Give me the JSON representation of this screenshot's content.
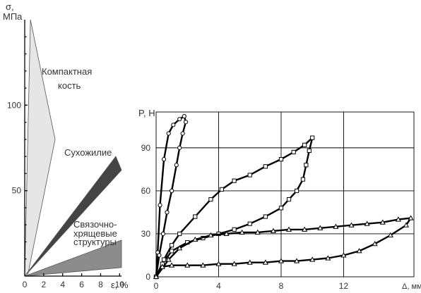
{
  "chart_data": [
    {
      "type": "area",
      "ylabel": "σ, МПа",
      "xlabel": "ε, %",
      "x_ticks": [
        "0",
        "2",
        "4",
        "6",
        "8",
        "10"
      ],
      "y_ticks": [
        "50",
        "100"
      ],
      "xlim": [
        0,
        10.2
      ],
      "ylim": [
        0,
        150
      ],
      "grid": false,
      "series": [
        {
          "name": "Компактная кость",
          "color": "#e6e6e6",
          "polygon": [
            [
              0,
              0
            ],
            [
              0.6,
              150
            ],
            [
              3.2,
              80
            ],
            [
              0.3,
              0
            ]
          ]
        },
        {
          "name": "Сухожилие",
          "color": "#444444",
          "polygon": [
            [
              0,
              0
            ],
            [
              9.6,
              70
            ],
            [
              10.2,
              62
            ],
            [
              0,
              0
            ]
          ]
        },
        {
          "name": "Связочно-хрящевые структуры",
          "color": "#8c8c8c",
          "polygon": [
            [
              0,
              0
            ],
            [
              10.2,
              21
            ],
            [
              10.2,
              5
            ],
            [
              0,
              0
            ]
          ]
        }
      ],
      "labels": {
        "bone_1": "Компактная",
        "bone_2": "кость",
        "tendon": "Сухожилие",
        "ligament_1": "Связочно-",
        "ligament_2": "хрящевые",
        "ligament_3": "структуры"
      }
    },
    {
      "type": "line",
      "ylabel": "P, Н",
      "xlabel": "Δ, мм",
      "x_ticks": [
        "0",
        "4",
        "8",
        "12"
      ],
      "y_ticks": [
        "0",
        "30",
        "60",
        "90"
      ],
      "xlim": [
        0,
        16.5
      ],
      "ylim": [
        0,
        115
      ],
      "grid": true,
      "series": [
        {
          "marker": "circle",
          "x": [
            0,
            0.1,
            0.25,
            0.5,
            0.8,
            1.1,
            1.5,
            1.8,
            1.9,
            1.7,
            1.5,
            1.3,
            1.0,
            0.7,
            0.45,
            0.2,
            0
          ],
          "y": [
            0,
            17,
            50,
            82,
            100,
            106,
            110,
            112,
            108,
            100,
            90,
            78,
            60,
            45,
            30,
            15,
            0
          ]
        },
        {
          "marker": "square",
          "x": [
            0,
            0.5,
            1.0,
            1.5,
            2.5,
            3.5,
            4.2,
            5.0,
            6.0,
            7.0,
            8.0,
            8.8,
            9.5,
            10.0,
            9.8,
            9.6,
            9.4,
            9.0,
            8.5,
            8.0,
            7.0,
            6.0,
            5.0,
            4.0,
            3.0,
            2.0,
            1.0,
            0.4,
            0
          ],
          "y": [
            0,
            12,
            22,
            30,
            42,
            54,
            61,
            67,
            71,
            77,
            82,
            87,
            92,
            97,
            88,
            78,
            68,
            60,
            54,
            48,
            42,
            37,
            33,
            30,
            27,
            24,
            18,
            9,
            0
          ]
        },
        {
          "marker": "triangle",
          "x": [
            0,
            0.4,
            1.0,
            2.0,
            3.0,
            4.0,
            5.0,
            6.0,
            7.0,
            8.0,
            9.0,
            10.0,
            11.0,
            12.0,
            13.0,
            14.0,
            15.0,
            16.0,
            16.3,
            15.5,
            14.5,
            13.5,
            12.5,
            11.5,
            10.5,
            9.5,
            8.5,
            7.5,
            6.5,
            5.5,
            4.5,
            3.5,
            2.5,
            1.5,
            0.8,
            0
          ],
          "y": [
            0,
            7,
            8,
            8,
            8,
            9,
            9,
            10,
            10,
            11,
            11,
            12,
            13,
            15,
            18,
            23,
            29,
            36,
            41,
            40,
            38,
            37,
            36,
            35,
            34,
            33,
            33,
            32,
            31,
            31,
            30,
            29,
            26,
            20,
            12,
            0
          ]
        }
      ]
    }
  ]
}
